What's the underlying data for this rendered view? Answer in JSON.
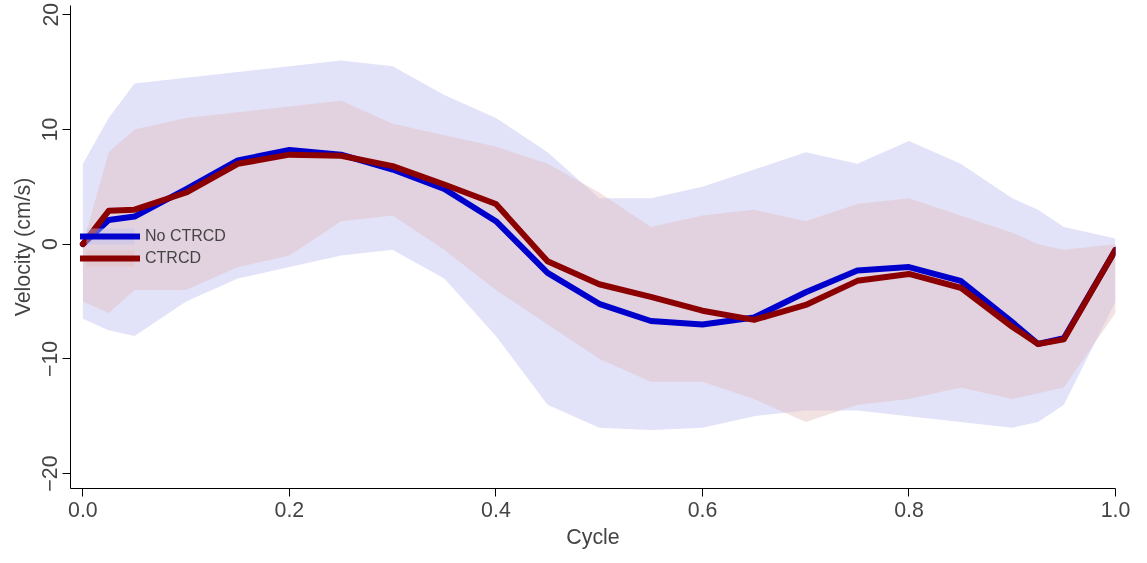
{
  "chart_data": {
    "type": "line",
    "xlabel": "Cycle",
    "ylabel": "Velocity (cm/s)",
    "xlim": [
      -0.012,
      1.0
    ],
    "ylim": [
      -21.3,
      20.8
    ],
    "xticks": [
      {
        "value": 0,
        "label": "0.0"
      },
      {
        "value": 0.2,
        "label": "0.2"
      },
      {
        "value": 0.4,
        "label": "0.4"
      },
      {
        "value": 0.6,
        "label": "0.6"
      },
      {
        "value": 0.8,
        "label": "0.8"
      },
      {
        "value": 1.0,
        "label": "1.0"
      }
    ],
    "yticks": [
      -20,
      -10,
      0,
      10,
      20
    ],
    "grid": false,
    "legend": "left",
    "marker": "none",
    "line_style": "solid",
    "x": [
      0,
      0.025,
      0.05,
      0.1,
      0.15,
      0.2,
      0.25,
      0.3,
      0.35,
      0.4,
      0.45,
      0.5,
      0.55,
      0.6,
      0.65,
      0.7,
      0.75,
      0.8,
      0.85,
      0.9,
      0.925,
      0.95,
      1.0
    ],
    "series": [
      {
        "name": "No CTRCD",
        "color": "#0000cd",
        "values": [
          0,
          2.1,
          2.4,
          4.8,
          7.3,
          8.2,
          7.8,
          6.5,
          4.8,
          2,
          -2.5,
          -5.2,
          -6.7,
          -7,
          -6.4,
          -4.2,
          -2.3,
          -2,
          -3.2,
          -6.8,
          -8.7,
          -8.2,
          -0.5
        ],
        "upper": [
          7,
          11,
          14,
          14.5,
          15,
          15.5,
          16,
          15.5,
          13,
          11,
          8,
          4,
          4,
          5,
          6.5,
          8,
          7,
          9,
          7,
          4,
          3,
          1.5,
          0.5
        ],
        "lower": [
          -6.5,
          -7.5,
          -8,
          -5,
          -3,
          -2,
          -1,
          -0.5,
          -3,
          -8,
          -14,
          -16,
          -16.2,
          -16,
          -15,
          -14.5,
          -14.5,
          -15,
          -15.5,
          -16,
          -15.5,
          -14,
          -5
        ]
      },
      {
        "name": "CTRCD",
        "color": "#8b0000",
        "values": [
          0,
          2.9,
          3,
          4.5,
          7,
          7.8,
          7.7,
          6.8,
          5.2,
          3.5,
          -1.5,
          -3.5,
          -4.6,
          -5.8,
          -6.6,
          -5.3,
          -3.2,
          -2.6,
          -3.8,
          -7.2,
          -8.7,
          -8.3,
          -0.5
        ],
        "upper": [
          0,
          8,
          10,
          11,
          11.5,
          12,
          12.5,
          10.5,
          9.5,
          8.5,
          7,
          4.5,
          1.5,
          2.5,
          3,
          2,
          3.5,
          4,
          2.5,
          1,
          0,
          -0.5,
          0
        ],
        "lower": [
          -5,
          -6,
          -4,
          -4,
          -2,
          -1,
          2,
          2.5,
          -0.5,
          -4,
          -7,
          -10,
          -12,
          -12,
          -13.5,
          -15.5,
          -14,
          -13.5,
          -12.5,
          -13.5,
          -13,
          -12.5,
          -6
        ]
      }
    ]
  }
}
